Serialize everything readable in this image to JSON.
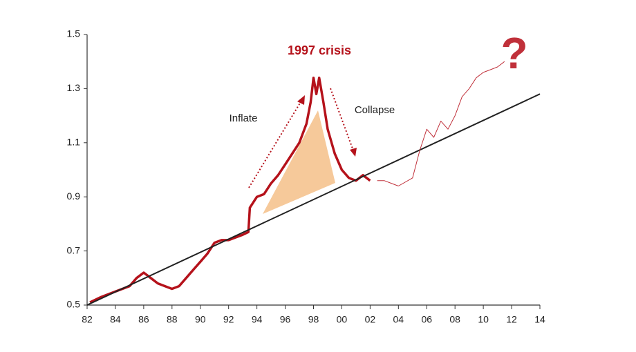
{
  "chart_data": {
    "type": "line",
    "annotations": [
      "1997 crisis",
      "Inflate",
      "Collapse",
      "?"
    ],
    "xlim": [
      1982,
      2014
    ],
    "xticks": [
      {
        "value": 1982,
        "label": "82"
      },
      {
        "value": 1984,
        "label": "84"
      },
      {
        "value": 1986,
        "label": "86"
      },
      {
        "value": 1988,
        "label": "88"
      },
      {
        "value": 1990,
        "label": "90"
      },
      {
        "value": 1992,
        "label": "92"
      },
      {
        "value": 1994,
        "label": "94"
      },
      {
        "value": 1996,
        "label": "96"
      },
      {
        "value": 1998,
        "label": "98"
      },
      {
        "value": 2000,
        "label": "00"
      },
      {
        "value": 2002,
        "label": "02"
      },
      {
        "value": 2004,
        "label": "04"
      },
      {
        "value": 2006,
        "label": "06"
      },
      {
        "value": 2008,
        "label": "08"
      },
      {
        "value": 2010,
        "label": "10"
      },
      {
        "value": 2012,
        "label": "12"
      },
      {
        "value": 2014,
        "label": "14"
      }
    ],
    "ylim": [
      0.5,
      1.5
    ],
    "yticks": [
      0.5,
      0.7,
      0.9,
      1.1,
      1.3,
      1.5
    ],
    "grid": false,
    "series": [
      {
        "color": "#b5121b",
        "width": 3.5,
        "x": [
          1982.2,
          1983,
          1984,
          1985,
          1985.5,
          1986,
          1986.5,
          1987,
          1987.5,
          1988,
          1988.5,
          1989,
          1989.5,
          1990,
          1990.5,
          1991,
          1991.5,
          1992,
          1992.5,
          1993,
          1993.4,
          1993.5,
          1994,
          1994.5,
          1995,
          1995.5,
          1996,
          1996.5,
          1997,
          1997.5,
          1997.8,
          1998,
          1998.2,
          1998.4,
          1998.7,
          1999,
          1999.5,
          2000,
          2000.5,
          2001,
          2001.5,
          2002
        ],
        "values": [
          0.51,
          0.53,
          0.55,
          0.57,
          0.6,
          0.62,
          0.6,
          0.58,
          0.57,
          0.56,
          0.57,
          0.6,
          0.63,
          0.66,
          0.69,
          0.73,
          0.74,
          0.74,
          0.75,
          0.76,
          0.77,
          0.86,
          0.9,
          0.91,
          0.95,
          0.98,
          1.02,
          1.06,
          1.1,
          1.17,
          1.25,
          1.34,
          1.28,
          1.34,
          1.25,
          1.15,
          1.06,
          1.0,
          0.97,
          0.96,
          0.98,
          0.96
        ]
      },
      {
        "color": "#222222",
        "width": 2,
        "x": [
          1982,
          2014
        ],
        "values": [
          0.5,
          1.28
        ]
      },
      {
        "color": "#c0303a",
        "width": 1,
        "x": [
          2002.5,
          2003,
          2003.5,
          2004,
          2005,
          2005.5,
          2006,
          2006.5,
          2007,
          2007.5,
          2008,
          2008.5,
          2009,
          2009.5,
          2010,
          2010.5,
          2011,
          2011.5
        ],
        "values": [
          0.96,
          0.96,
          0.95,
          0.94,
          0.97,
          1.07,
          1.15,
          1.12,
          1.18,
          1.15,
          1.2,
          1.27,
          1.3,
          1.34,
          1.36,
          1.37,
          1.38,
          1.4
        ]
      }
    ]
  }
}
